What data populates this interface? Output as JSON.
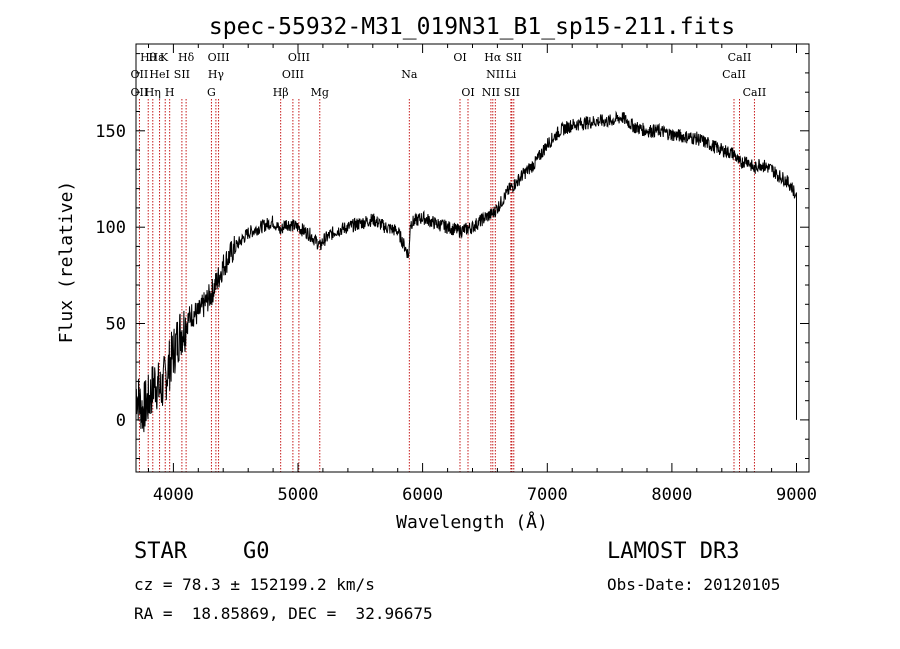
{
  "chart_data": {
    "type": "line",
    "title": "spec-55932-M31_019N31_B1_sp15-211.fits",
    "xlabel": "Wavelength (Å)",
    "ylabel": "Flux (relative)",
    "xlim": [
      3700,
      9100
    ],
    "ylim": [
      -27,
      195
    ],
    "xticks": [
      4000,
      5000,
      6000,
      7000,
      8000,
      9000
    ],
    "xtick_labels": [
      "4000",
      "5000",
      "6000",
      "7000",
      "8000",
      "9000"
    ],
    "yticks": [
      0,
      50,
      100,
      150
    ],
    "ytick_labels": [
      "0",
      "50",
      "100",
      "150"
    ],
    "grid": false,
    "series": [
      {
        "name": "flux",
        "color": "#000000",
        "x": [
          3700,
          3750,
          3800,
          3850,
          3900,
          3950,
          4000,
          4050,
          4100,
          4150,
          4200,
          4250,
          4300,
          4350,
          4400,
          4450,
          4500,
          4600,
          4700,
          4800,
          4860,
          4900,
          5000,
          5100,
          5180,
          5200,
          5300,
          5400,
          5500,
          5600,
          5700,
          5800,
          5890,
          5900,
          6000,
          6100,
          6200,
          6300,
          6400,
          6500,
          6563,
          6600,
          6650,
          6700,
          6750,
          6800,
          6850,
          6900,
          6950,
          7000,
          7100,
          7200,
          7300,
          7400,
          7500,
          7600,
          7700,
          7800,
          7900,
          8000,
          8100,
          8200,
          8300,
          8400,
          8500,
          8542,
          8600,
          8662,
          8700,
          8800,
          8850,
          8900,
          8950,
          8985,
          9000
        ],
        "y": [
          15,
          5,
          10,
          20,
          15,
          25,
          35,
          45,
          50,
          55,
          55,
          60,
          65,
          72,
          80,
          85,
          90,
          97,
          100,
          103,
          98,
          102,
          100,
          96,
          90,
          93,
          98,
          100,
          102,
          104,
          100,
          98,
          85,
          102,
          105,
          102,
          100,
          98,
          100,
          105,
          107,
          110,
          115,
          120,
          123,
          127,
          130,
          133,
          138,
          143,
          150,
          153,
          154,
          155,
          155,
          157,
          152,
          150,
          150,
          148,
          147,
          146,
          143,
          140,
          138,
          133,
          135,
          130,
          133,
          130,
          127,
          125,
          122,
          118,
          0
        ]
      }
    ],
    "lines": [
      {
        "name": "Hε CaII",
        "x": 3970
      },
      {
        "name": "Hθ",
        "x": 3798
      },
      {
        "name": "Hη",
        "x": 3835
      },
      {
        "name": "CaII K",
        "x": 3934
      },
      {
        "name": "HeI",
        "x": 3889
      },
      {
        "name": "OII",
        "x": 3727
      },
      {
        "name": "Hδ",
        "x": 4102
      },
      {
        "name": "SII",
        "x": 4068
      },
      {
        "name": "Hγ",
        "x": 4341
      },
      {
        "name": "G",
        "x": 4305
      },
      {
        "name": "OIII",
        "x": 4363
      },
      {
        "name": "Hβ",
        "x": 4861
      },
      {
        "name": "OIII",
        "x": 4959
      },
      {
        "name": "OIII",
        "x": 5007
      },
      {
        "name": "Mg",
        "x": 5175
      },
      {
        "name": "Na",
        "x": 5893
      },
      {
        "name": "OI",
        "x": 6300
      },
      {
        "name": "OI",
        "x": 6364
      },
      {
        "name": "NII",
        "x": 6548
      },
      {
        "name": "Hα",
        "x": 6563
      },
      {
        "name": "NII",
        "x": 6583
      },
      {
        "name": "Li",
        "x": 6708
      },
      {
        "name": "SII",
        "x": 6716
      },
      {
        "name": "SII",
        "x": 6731
      },
      {
        "name": "CaII",
        "x": 8498
      },
      {
        "name": "CaII",
        "x": 8542
      },
      {
        "name": "CaII",
        "x": 8662
      }
    ],
    "line_labels": [
      {
        "text": "Hθ",
        "x": 3798,
        "row": 0
      },
      {
        "text": "Hε",
        "x": 3862,
        "row": 0
      },
      {
        "text": "K",
        "x": 3925,
        "row": 0
      },
      {
        "text": "Hδ",
        "x": 4102,
        "row": 0
      },
      {
        "text": "OIII",
        "x": 4363,
        "row": 0
      },
      {
        "text": "OIII",
        "x": 5007,
        "row": 0
      },
      {
        "text": "OI",
        "x": 6300,
        "row": 0
      },
      {
        "text": "Hα",
        "x": 6563,
        "row": 0
      },
      {
        "text": "SII",
        "x": 6731,
        "row": 0
      },
      {
        "text": "CaII",
        "x": 8542,
        "row": 0
      },
      {
        "text": "OII",
        "x": 3727,
        "row": 1
      },
      {
        "text": "HeI",
        "x": 3889,
        "row": 1
      },
      {
        "text": "SII",
        "x": 4068,
        "row": 1
      },
      {
        "text": "Hγ",
        "x": 4341,
        "row": 1
      },
      {
        "text": "OIII",
        "x": 4959,
        "row": 1
      },
      {
        "text": "Na",
        "x": 5893,
        "row": 1
      },
      {
        "text": "NII",
        "x": 6583,
        "row": 1
      },
      {
        "text": "Li",
        "x": 6708,
        "row": 1
      },
      {
        "text": "CaII",
        "x": 8498,
        "row": 1
      },
      {
        "text": "OII",
        "x": 3727,
        "row": 2
      },
      {
        "text": "Hη",
        "x": 3835,
        "row": 2
      },
      {
        "text": "H",
        "x": 3970,
        "row": 2
      },
      {
        "text": "G",
        "x": 4305,
        "row": 2
      },
      {
        "text": "Hβ",
        "x": 4861,
        "row": 2
      },
      {
        "text": "Mg",
        "x": 5175,
        "row": 2
      },
      {
        "text": "OI",
        "x": 6364,
        "row": 2
      },
      {
        "text": "NII",
        "x": 6548,
        "row": 2
      },
      {
        "text": "SII",
        "x": 6716,
        "row": 2
      },
      {
        "text": "CaII",
        "x": 8662,
        "row": 2
      }
    ],
    "line_color": "#c00000"
  },
  "info": {
    "object_class": "STAR",
    "subclass": "G0",
    "survey": "LAMOST DR3",
    "cz": "cz = 78.3 ± 152199.2 km/s",
    "obs_date": "Obs-Date: 20120105",
    "radec": "RA =  18.85869, DEC =  32.96675"
  }
}
